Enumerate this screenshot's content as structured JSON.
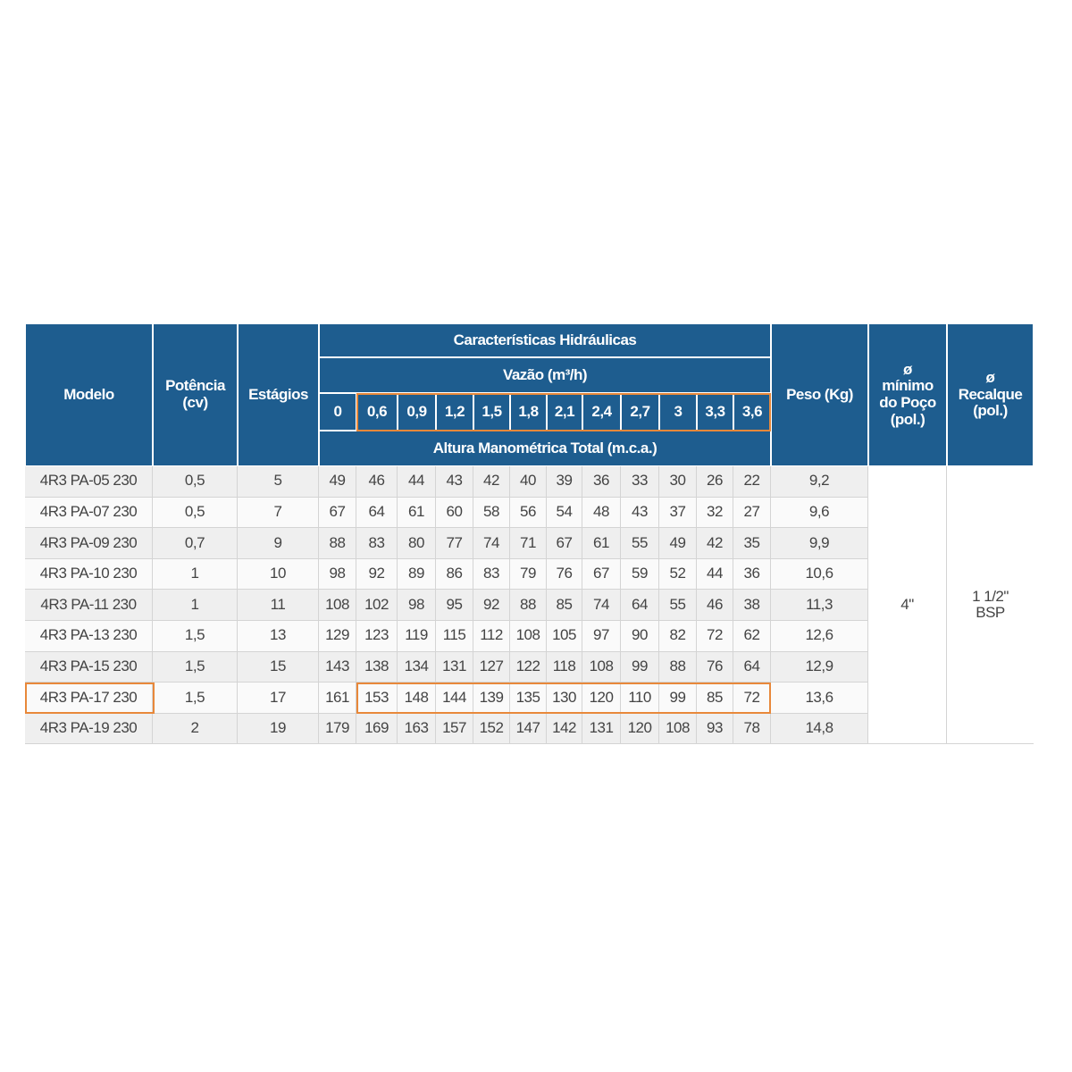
{
  "header": {
    "modelo": "Modelo",
    "potencia": [
      "Potência",
      "(cv)"
    ],
    "estagios": "Estágios",
    "caracteristicas": "Características Hidráulicas",
    "vazao": "Vazão (m³/h)",
    "flows": [
      "0",
      "0,6",
      "0,9",
      "1,2",
      "1,5",
      "1,8",
      "2,1",
      "2,4",
      "2,7",
      "3",
      "3,3",
      "3,6"
    ],
    "altura": "Altura Manométrica Total (m.c.a.)",
    "peso": "Peso (Kg)",
    "poco": [
      "ø",
      "mínimo",
      "do Poço",
      "(pol.)"
    ],
    "recalque": [
      "ø",
      "Recalque",
      "(pol.)"
    ]
  },
  "table": {
    "rows": [
      [
        "4R3 PA-05 230",
        "0,5",
        "5",
        [
          "49",
          "46",
          "44",
          "43",
          "42",
          "40",
          "39",
          "36",
          "33",
          "30",
          "26",
          "22"
        ],
        "9,2"
      ],
      [
        "4R3 PA-07 230",
        "0,5",
        "7",
        [
          "67",
          "64",
          "61",
          "60",
          "58",
          "56",
          "54",
          "48",
          "43",
          "37",
          "32",
          "27"
        ],
        "9,6"
      ],
      [
        "4R3 PA-09 230",
        "0,7",
        "9",
        [
          "88",
          "83",
          "80",
          "77",
          "74",
          "71",
          "67",
          "61",
          "55",
          "49",
          "42",
          "35"
        ],
        "9,9"
      ],
      [
        "4R3 PA-10 230",
        "1",
        "10",
        [
          "98",
          "92",
          "89",
          "86",
          "83",
          "79",
          "76",
          "67",
          "59",
          "52",
          "44",
          "36"
        ],
        "10,6"
      ],
      [
        "4R3 PA-11 230",
        "1",
        "11",
        [
          "108",
          "102",
          "98",
          "95",
          "92",
          "88",
          "85",
          "74",
          "64",
          "55",
          "46",
          "38"
        ],
        "11,3"
      ],
      [
        "4R3 PA-13 230",
        "1,5",
        "13",
        [
          "129",
          "123",
          "119",
          "115",
          "112",
          "108",
          "105",
          "97",
          "90",
          "82",
          "72",
          "62"
        ],
        "12,6"
      ],
      [
        "4R3 PA-15 230",
        "1,5",
        "15",
        [
          "143",
          "138",
          "134",
          "131",
          "127",
          "122",
          "118",
          "108",
          "99",
          "88",
          "76",
          "64"
        ],
        "12,9"
      ],
      [
        "4R3 PA-17 230",
        "1,5",
        "17",
        [
          "161",
          "153",
          "148",
          "144",
          "139",
          "135",
          "130",
          "120",
          "110",
          "99",
          "85",
          "72"
        ],
        "13,6"
      ],
      [
        "4R3 PA-19 230",
        "2",
        "19",
        [
          "179",
          "169",
          "163",
          "157",
          "152",
          "147",
          "142",
          "131",
          "120",
          "108",
          "93",
          "78"
        ],
        "14,8"
      ]
    ],
    "poco": "4\"",
    "recalque": [
      "1 1/2\"",
      "BSP"
    ]
  }
}
